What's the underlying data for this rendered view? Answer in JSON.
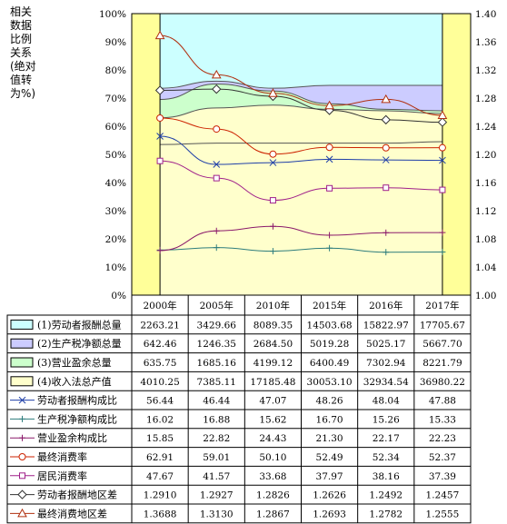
{
  "chart_data": {
    "type": "line",
    "ylabel": "相关数据比例关系(绝对值转为%)",
    "y_left": {
      "min": 0,
      "max": 100,
      "ticks": [
        "0%",
        "10%",
        "20%",
        "30%",
        "40%",
        "50%",
        "60%",
        "70%",
        "80%",
        "90%",
        "100%"
      ]
    },
    "y_right": {
      "min": 1.0,
      "max": 1.4,
      "ticks": [
        "1.00",
        "1.04",
        "1.08",
        "1.12",
        "1.16",
        "1.20",
        "1.24",
        "1.28",
        "1.32",
        "1.36",
        "1.40"
      ]
    },
    "categories": [
      "2000年",
      "2005年",
      "2010年",
      "2015年",
      "2016年",
      "2017年"
    ],
    "area_series": [
      {
        "name": "(1)劳动者报酬总量",
        "fill": "#ccffff",
        "values": [
          2263.21,
          3429.66,
          8089.35,
          14503.68,
          15822.97,
          17705.67
        ],
        "share": [
          56.44,
          46.44,
          47.07,
          48.26,
          48.04,
          47.88
        ],
        "stack_top": [
          73.5,
          76,
          73.5,
          74.5,
          74.5,
          74.5
        ]
      },
      {
        "name": "(2)生产税净额总量",
        "fill": "#ccccff",
        "values": [
          642.46,
          1246.35,
          2684.5,
          5019.28,
          5025.17,
          5667.7
        ],
        "share": [
          16.02,
          16.88,
          15.62,
          16.7,
          15.26,
          15.33
        ],
        "stack_top": [
          69.5,
          75,
          72.5,
          68,
          66,
          65.5
        ]
      },
      {
        "name": "(3)营业盈余总量",
        "fill": "#ccffcc",
        "values": [
          635.75,
          1685.16,
          4199.12,
          6400.49,
          7302.94,
          8221.79
        ],
        "share": [
          15.85,
          22.82,
          24.43,
          21.3,
          22.17,
          22.23
        ],
        "stack_top": [
          63,
          66.5,
          67.5,
          66,
          65.5,
          64.5
        ]
      },
      {
        "name": "(4)收入法总产值",
        "fill": "#ffffcc",
        "values": [
          4010.25,
          7385.11,
          17185.48,
          30053.1,
          32934.54,
          36980.22
        ],
        "stack_top": [
          53.5,
          54,
          54,
          54,
          54,
          54.5
        ]
      }
    ],
    "line_series": [
      {
        "name": "劳动者报酬构成比",
        "marker": "x",
        "color": "#1f3fa8",
        "axis": "left",
        "values": [
          56.44,
          46.44,
          47.07,
          48.26,
          48.04,
          47.88
        ]
      },
      {
        "name": "生产税净额构成比",
        "marker": "+",
        "color": "#2e7d7d",
        "axis": "left",
        "values": [
          16.02,
          16.88,
          15.62,
          16.7,
          15.26,
          15.33
        ]
      },
      {
        "name": "营业盈余构成比",
        "marker": "+",
        "color": "#8b1a6b",
        "axis": "left",
        "values": [
          15.85,
          22.82,
          24.43,
          21.3,
          22.17,
          22.23
        ]
      },
      {
        "name": "最终消费率",
        "marker": "circle",
        "color": "#cc2200",
        "axis": "left",
        "values": [
          62.91,
          59.01,
          50.1,
          52.49,
          52.34,
          52.37
        ]
      },
      {
        "name": "居民消费率",
        "marker": "square",
        "color": "#a0208a",
        "axis": "left",
        "values": [
          47.67,
          41.57,
          33.68,
          37.97,
          38.16,
          37.39
        ]
      },
      {
        "name": "劳动者报酬地区差",
        "marker": "diamond",
        "color": "#333333",
        "axis": "right",
        "values": [
          1.291,
          1.2927,
          1.2826,
          1.2626,
          1.2492,
          1.2457
        ]
      },
      {
        "name": "最终消费地区差",
        "marker": "triangle",
        "color": "#b03010",
        "axis": "right",
        "values": [
          1.3688,
          1.313,
          1.2867,
          1.2693,
          1.2782,
          1.2555
        ]
      }
    ],
    "table_rows": [
      [
        "2263.21",
        "3429.66",
        "8089.35",
        "14503.68",
        "15822.97",
        "17705.67"
      ],
      [
        "642.46",
        "1246.35",
        "2684.50",
        "5019.28",
        "5025.17",
        "5667.70"
      ],
      [
        "635.75",
        "1685.16",
        "4199.12",
        "6400.49",
        "7302.94",
        "8221.79"
      ],
      [
        "4010.25",
        "7385.11",
        "17185.48",
        "30053.10",
        "32934.54",
        "36980.22"
      ],
      [
        "56.44",
        "46.44",
        "47.07",
        "48.26",
        "48.04",
        "47.88"
      ],
      [
        "16.02",
        "16.88",
        "15.62",
        "16.70",
        "15.26",
        "15.33"
      ],
      [
        "15.85",
        "22.82",
        "24.43",
        "21.30",
        "22.17",
        "22.23"
      ],
      [
        "62.91",
        "59.01",
        "50.10",
        "52.49",
        "52.34",
        "52.37"
      ],
      [
        "47.67",
        "41.57",
        "33.68",
        "37.97",
        "38.16",
        "37.39"
      ],
      [
        "1.2910",
        "1.2927",
        "1.2826",
        "1.2626",
        "1.2492",
        "1.2457"
      ],
      [
        "1.3688",
        "1.3130",
        "1.2867",
        "1.2693",
        "1.2782",
        "1.2555"
      ]
    ],
    "colors": {
      "edge_band": "#ffff99",
      "plot_bg": "#ffffcc",
      "border": "#000000"
    }
  }
}
